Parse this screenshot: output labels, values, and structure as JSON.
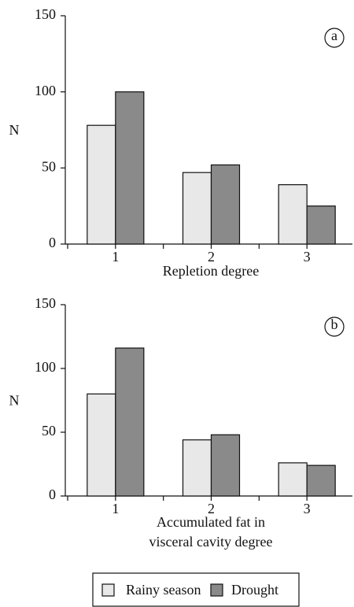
{
  "chart_data": [
    {
      "type": "bar",
      "annotation": "a",
      "y_label": "N",
      "x_label": [
        "Repletion degree"
      ],
      "categories": [
        "1",
        "2",
        "3"
      ],
      "series": [
        {
          "color": "#e8e8e8",
          "values": [
            78,
            47,
            39
          ]
        },
        {
          "color": "#8a8a8a",
          "values": [
            100,
            52,
            25
          ]
        }
      ],
      "ylim": [
        0,
        150
      ],
      "yticks": [
        0,
        50,
        100,
        150
      ]
    },
    {
      "type": "bar",
      "annotation": "b",
      "y_label": "N",
      "x_label": [
        "Accumulated fat in",
        "visceral cavity degree"
      ],
      "categories": [
        "1",
        "2",
        "3"
      ],
      "series": [
        {
          "color": "#e8e8e8",
          "values": [
            80,
            44,
            26
          ]
        },
        {
          "color": "#8a8a8a",
          "values": [
            116,
            48,
            24
          ]
        }
      ],
      "ylim": [
        0,
        150
      ],
      "yticks": [
        0,
        50,
        100,
        150
      ]
    }
  ],
  "legend": [
    {
      "name": "Rainy season",
      "color": "#e8e8e8"
    },
    {
      "name": "Drought",
      "color": "#8a8a8a"
    }
  ]
}
